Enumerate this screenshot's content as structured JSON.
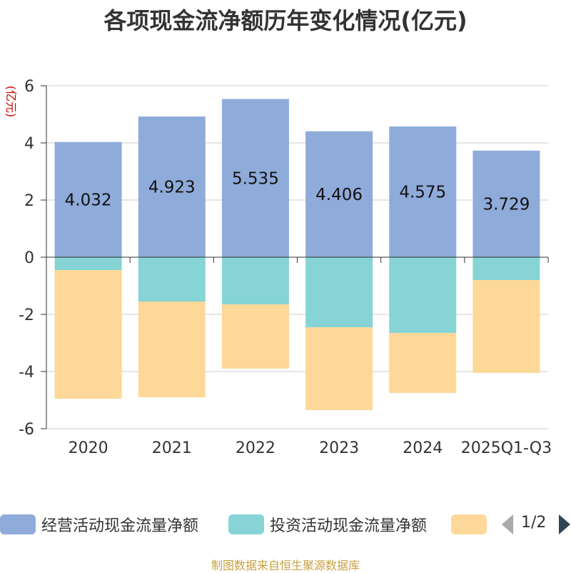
{
  "chart_data": {
    "type": "bar",
    "stacked": true,
    "title": "各项现金流净额历年变化情况(亿元)",
    "ylabel": "(亿元)",
    "ylim": [
      -6,
      6
    ],
    "yticks": [
      6,
      4,
      2,
      0,
      -2,
      -4,
      -6
    ],
    "categories": [
      "2020",
      "2021",
      "2022",
      "2023",
      "2024",
      "2025Q1-Q3"
    ],
    "series": [
      {
        "name": "经营活动现金流量净额",
        "color": "#8fabda",
        "values": [
          4.032,
          4.923,
          5.535,
          4.406,
          4.575,
          3.729
        ],
        "labels": [
          "4.032",
          "4.923",
          "5.535",
          "4.406",
          "4.575",
          "3.729"
        ]
      },
      {
        "name": "投资活动现金流量净额",
        "color": "#86d4d6",
        "values": [
          -0.45,
          -1.55,
          -1.65,
          -2.45,
          -2.65,
          -0.8
        ]
      },
      {
        "name": "",
        "color": "#fed898",
        "values": [
          -4.5,
          -3.35,
          -2.25,
          -2.9,
          -2.1,
          -3.25
        ]
      }
    ],
    "legend": {
      "page": "1/2",
      "position": "bottom"
    },
    "grid": true
  },
  "source": "制图数据来自恒生聚源数据库"
}
